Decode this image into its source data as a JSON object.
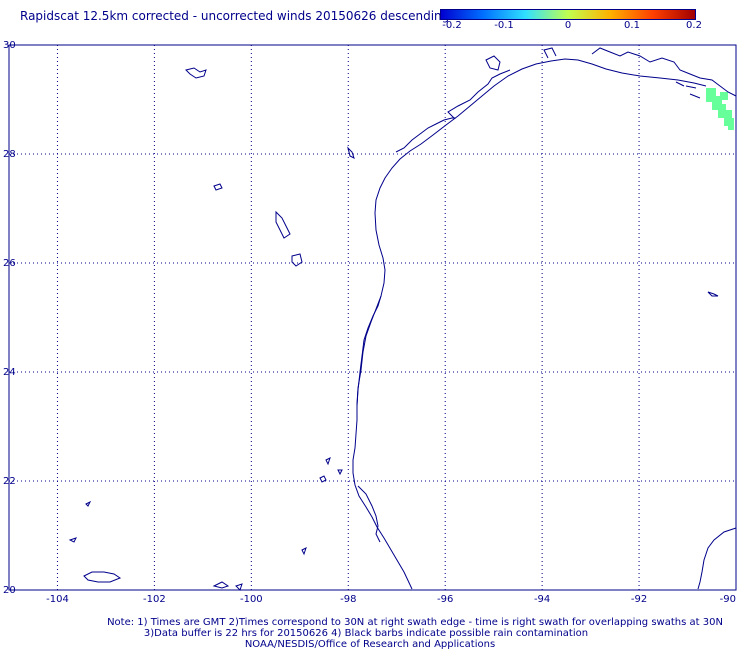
{
  "title": "Rapidscat 12.5km corrected - uncorrected winds 20150626 descending",
  "colorbar": {
    "ticks": [
      "-0.2",
      "-0.1",
      "0",
      "0.1",
      "0.2"
    ],
    "colors": [
      "#0000d0",
      "#0070ff",
      "#30e0ff",
      "#c0ff50",
      "#ffb000",
      "#ff4000",
      "#a00000"
    ]
  },
  "map": {
    "lat_labels": [
      "30",
      "28",
      "26",
      "24",
      "22",
      "20"
    ],
    "lon_labels": [
      "-104",
      "-102",
      "-100",
      "-98",
      "-96",
      "-94",
      "-92",
      "-90"
    ],
    "lat_range": [
      20,
      30
    ],
    "lon_range": [
      -105,
      -90
    ],
    "grid": "dotted",
    "coast_color": "#00008b",
    "data_color": "#66ff99"
  },
  "notes": [
    "Note: 1) Times are GMT 2)Times correspond to 30N at right swath edge - time is right swath for overlapping swaths at 30N",
    "3)Data buffer is 22 hrs for 20150626 4) Black barbs indicate possible rain contamination",
    "NOAA/NESDIS/Office of Research and Applications"
  ]
}
